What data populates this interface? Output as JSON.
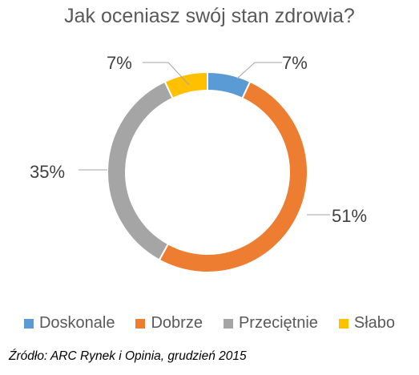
{
  "chart_data": {
    "type": "pie",
    "subtype": "doughnut",
    "title": "Jak oceniasz swój stan zdrowia?",
    "categories": [
      "Doskonale",
      "Dobrze",
      "Przeciętnie",
      "Słabo"
    ],
    "values": [
      7,
      51,
      35,
      7
    ],
    "value_labels": [
      "7%",
      "51%",
      "35%",
      "7%"
    ],
    "colors": [
      "#5b9bd5",
      "#ed7d31",
      "#a5a5a5",
      "#ffc000"
    ],
    "legend_position": "bottom",
    "start_angle_deg": 0,
    "direction": "clockwise",
    "note": "Źródło: ARC Rynek i Opinia, grudzień 2015"
  }
}
